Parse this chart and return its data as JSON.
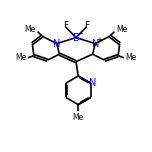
{
  "bg_color": "#ffffff",
  "line_color": "#000000",
  "N_color": "#0000ff",
  "B_color": "#0000ff",
  "lw": 1.2,
  "figsize": [
    1.52,
    1.52
  ],
  "dpi": 100,
  "xlim": [
    0,
    10
  ],
  "ylim": [
    0,
    10
  ]
}
